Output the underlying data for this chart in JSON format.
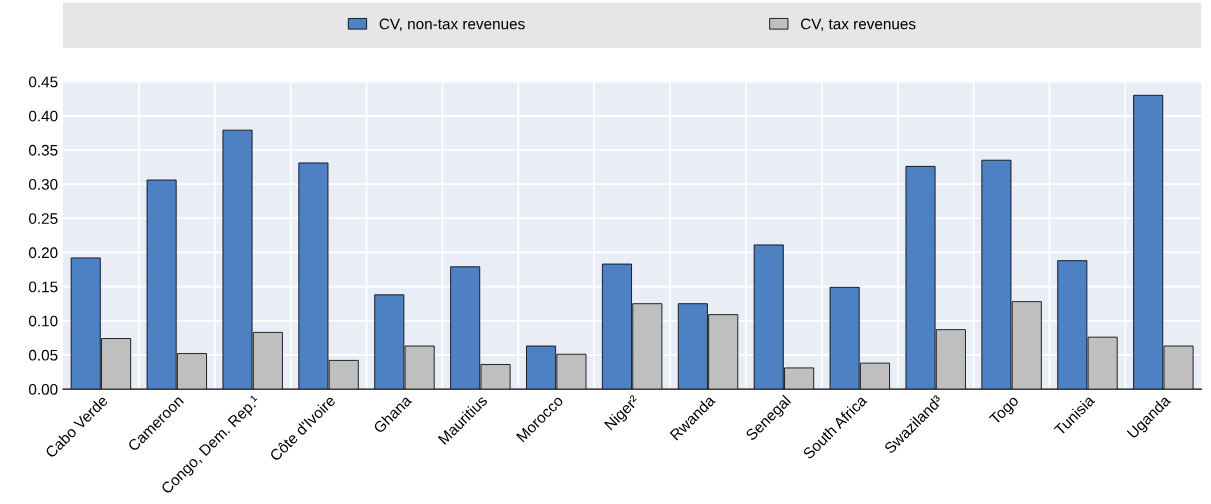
{
  "chart_data": {
    "type": "bar",
    "categories": [
      "Cabo Verde",
      "Cameroon",
      "Congo, Dem. Rep.¹",
      "Côte d'Ivoire",
      "Ghana",
      "Mauritius",
      "Morocco",
      "Niger²",
      "Rwanda",
      "Senegal",
      "South Africa",
      "Swaziland³",
      "Togo",
      "Tunisia",
      "Uganda"
    ],
    "series": [
      {
        "name": "CV, non-tax revenues",
        "color": "#4e81c4",
        "values": [
          0.192,
          0.306,
          0.379,
          0.331,
          0.138,
          0.179,
          0.063,
          0.183,
          0.125,
          0.211,
          0.149,
          0.326,
          0.335,
          0.188,
          0.43
        ]
      },
      {
        "name": "CV, tax revenues",
        "color": "#bfbfbf",
        "values": [
          0.074,
          0.052,
          0.083,
          0.042,
          0.063,
          0.036,
          0.051,
          0.125,
          0.109,
          0.031,
          0.038,
          0.087,
          0.128,
          0.076,
          0.063
        ]
      }
    ],
    "ylim": [
      0,
      0.45
    ],
    "yticks": [
      {
        "value": 0,
        "label": "0.00"
      },
      {
        "value": 0.05,
        "label": "0.05"
      },
      {
        "value": 0.1,
        "label": "0.10"
      },
      {
        "value": 0.15,
        "label": "0.15"
      },
      {
        "value": 0.2,
        "label": "0.20"
      },
      {
        "value": 0.25,
        "label": "0.25"
      },
      {
        "value": 0.3,
        "label": "0.30"
      },
      {
        "value": 0.35,
        "label": "0.35"
      },
      {
        "value": 0.4,
        "label": "0.40"
      },
      {
        "value": 0.45,
        "label": "0.45"
      }
    ],
    "grid": "y",
    "legend": "top"
  }
}
